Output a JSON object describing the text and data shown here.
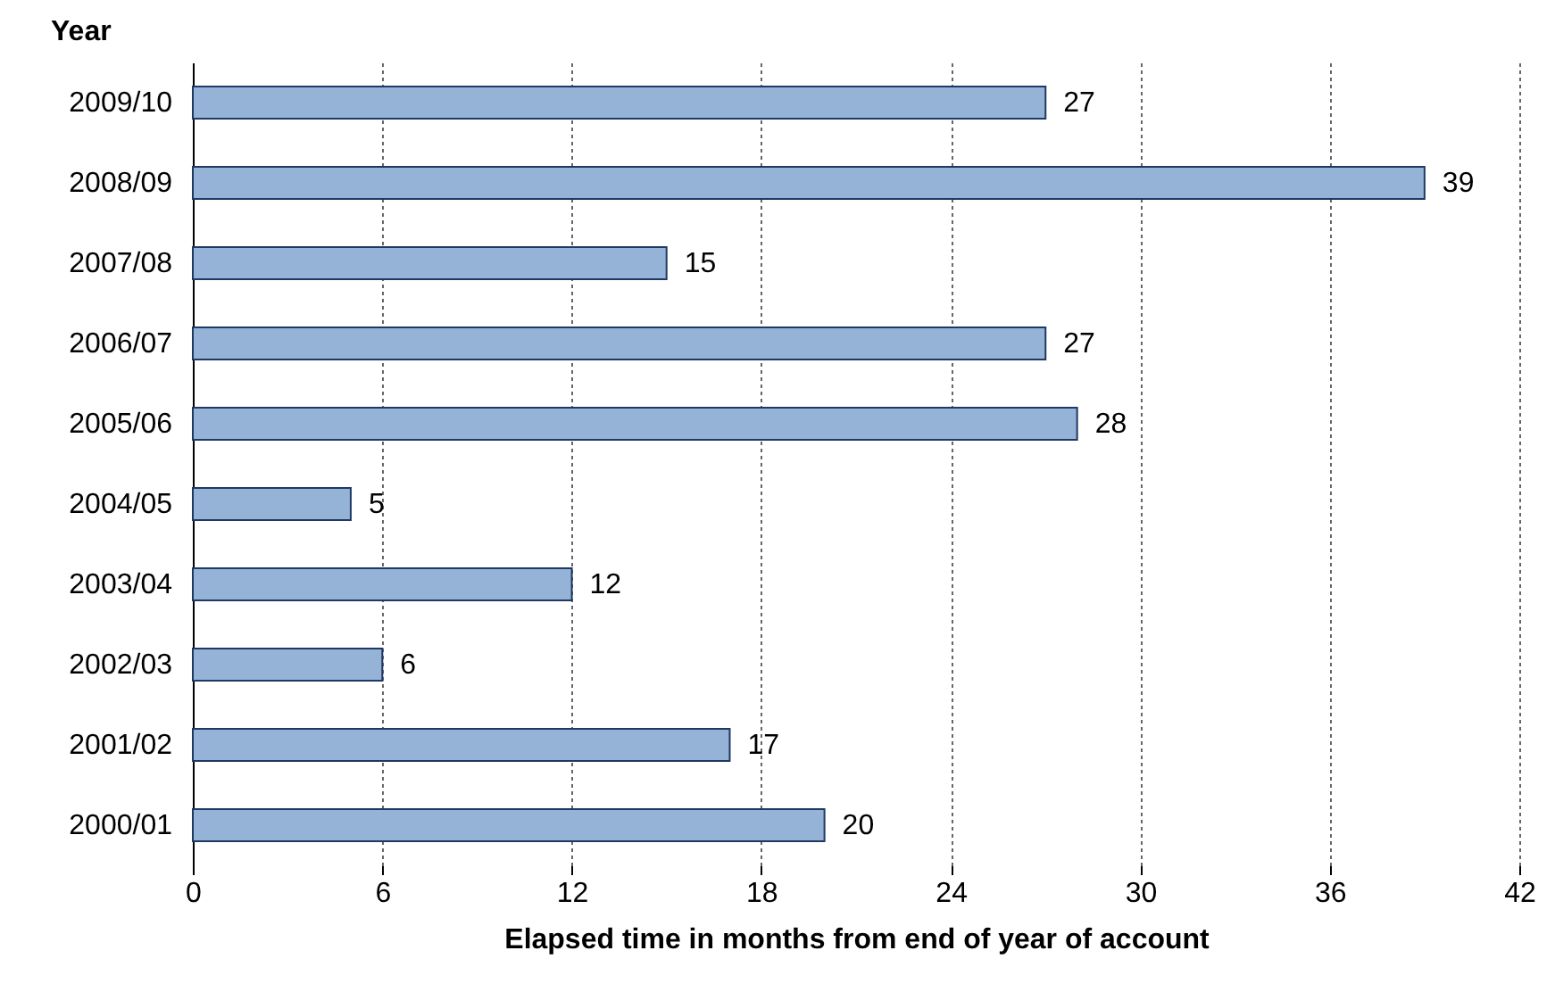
{
  "chart_data": {
    "type": "bar",
    "orientation": "horizontal",
    "xlabel": "Elapsed time in months from end of year of account",
    "ylabel": "Year",
    "categories": [
      "2009/10",
      "2008/09",
      "2007/08",
      "2006/07",
      "2005/06",
      "2004/05",
      "2003/04",
      "2002/03",
      "2001/02",
      "2000/01"
    ],
    "values": [
      27,
      39,
      15,
      27,
      28,
      5,
      12,
      6,
      17,
      20
    ],
    "color": "#95b3d7",
    "xlim": [
      0,
      42
    ],
    "xticks": [
      0,
      6,
      12,
      18,
      24,
      30,
      36,
      42
    ],
    "grid": "x",
    "data_labels": true
  }
}
